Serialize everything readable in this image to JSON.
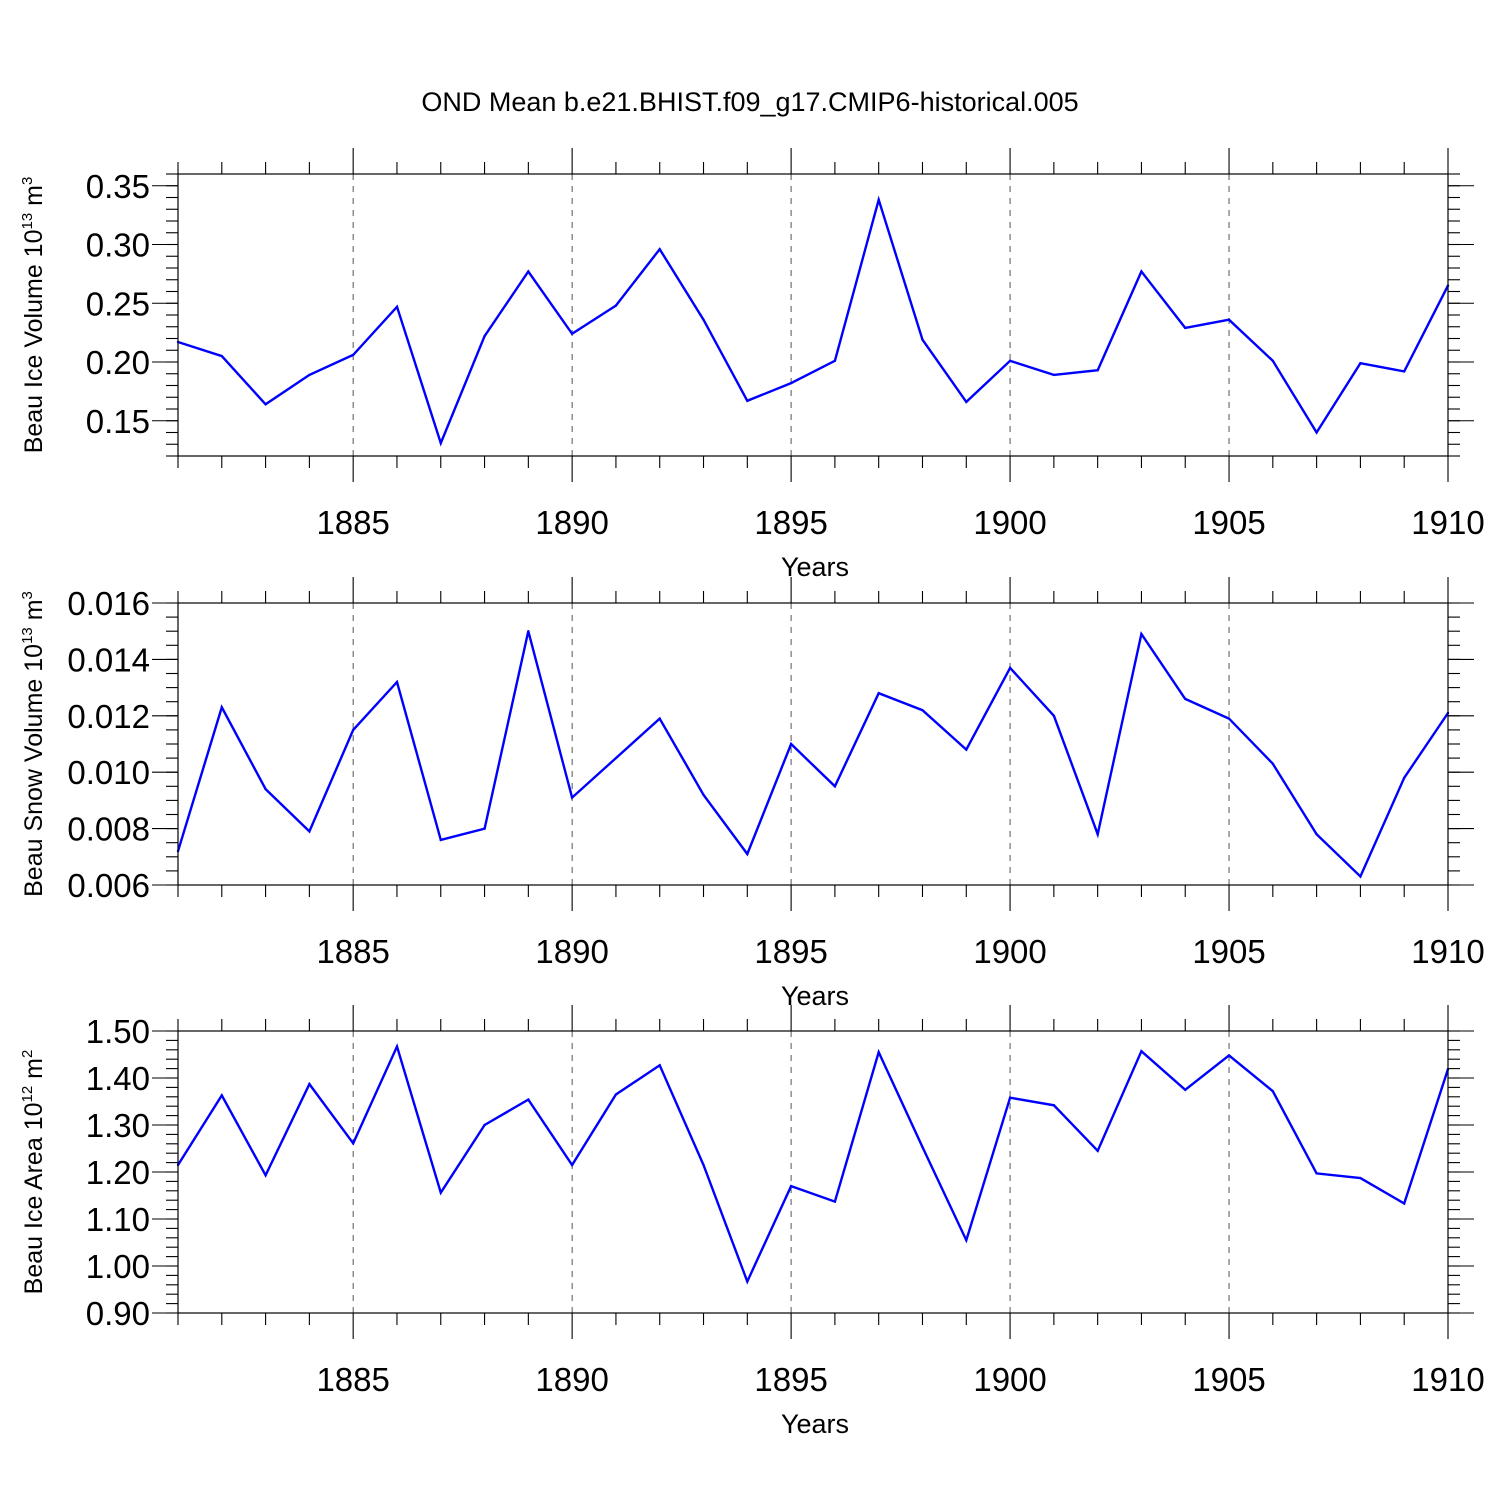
{
  "title": "OND Mean b.e21.BHIST.f09_g17.CMIP6-historical.005",
  "series_color": "#0000ff",
  "chart_data": [
    {
      "type": "line",
      "ylabel_main": "Beau Ice Volume 10",
      "ylabel_exp": "13",
      "ylabel_unit": " m",
      "ylabel_unit_exp": "3",
      "xlabel": "Years",
      "xlim": [
        1881,
        1910
      ],
      "ylim": [
        0.12,
        0.36
      ],
      "yticks": [
        0.15,
        0.2,
        0.25,
        0.3,
        0.35
      ],
      "ytick_labels": [
        "0.15",
        "0.20",
        "0.25",
        "0.30",
        "0.35"
      ],
      "yminor_step": 0.01,
      "xticks": [
        1885,
        1890,
        1895,
        1900,
        1905,
        1910
      ],
      "xtick_labels": [
        "1885",
        "1890",
        "1895",
        "1900",
        "1905",
        "1910"
      ],
      "x": [
        1881,
        1882,
        1883,
        1884,
        1885,
        1886,
        1887,
        1888,
        1889,
        1890,
        1891,
        1892,
        1893,
        1894,
        1895,
        1896,
        1897,
        1898,
        1899,
        1900,
        1901,
        1902,
        1903,
        1904,
        1905,
        1906,
        1907,
        1908,
        1909,
        1910
      ],
      "values": [
        0.217,
        0.205,
        0.164,
        0.189,
        0.206,
        0.247,
        0.131,
        0.222,
        0.277,
        0.224,
        0.248,
        0.296,
        0.236,
        0.167,
        0.182,
        0.201,
        0.338,
        0.219,
        0.166,
        0.201,
        0.189,
        0.193,
        0.277,
        0.229,
        0.236,
        0.201,
        0.14,
        0.199,
        0.192,
        0.265
      ]
    },
    {
      "type": "line",
      "ylabel_main": "Beau Snow Volume 10",
      "ylabel_exp": "13",
      "ylabel_unit": " m",
      "ylabel_unit_exp": "3",
      "xlabel": "Years",
      "xlim": [
        1881,
        1910
      ],
      "ylim": [
        0.006,
        0.016
      ],
      "yticks": [
        0.006,
        0.008,
        0.01,
        0.012,
        0.014,
        0.016
      ],
      "ytick_labels": [
        "0.006",
        "0.008",
        "0.010",
        "0.012",
        "0.014",
        "0.016"
      ],
      "yminor_step": 0.0005,
      "xticks": [
        1885,
        1890,
        1895,
        1900,
        1905,
        1910
      ],
      "xtick_labels": [
        "1885",
        "1890",
        "1895",
        "1900",
        "1905",
        "1910"
      ],
      "x": [
        1881,
        1882,
        1883,
        1884,
        1885,
        1886,
        1887,
        1888,
        1889,
        1890,
        1891,
        1892,
        1893,
        1894,
        1895,
        1896,
        1897,
        1898,
        1899,
        1900,
        1901,
        1902,
        1903,
        1904,
        1905,
        1906,
        1907,
        1908,
        1909,
        1910
      ],
      "values": [
        0.0072,
        0.0123,
        0.0094,
        0.0079,
        0.0115,
        0.0132,
        0.0076,
        0.008,
        0.015,
        0.0091,
        0.0105,
        0.0119,
        0.0092,
        0.0071,
        0.011,
        0.0095,
        0.0128,
        0.0122,
        0.0108,
        0.0137,
        0.012,
        0.0078,
        0.0149,
        0.0126,
        0.0119,
        0.0103,
        0.0078,
        0.0063,
        0.0098,
        0.0121
      ]
    },
    {
      "type": "line",
      "ylabel_main": "Beau Ice Area 10",
      "ylabel_exp": "12",
      "ylabel_unit": " m",
      "ylabel_unit_exp": "2",
      "xlabel": "Years",
      "xlim": [
        1881,
        1910
      ],
      "ylim": [
        0.9,
        1.5
      ],
      "yticks": [
        0.9,
        1.0,
        1.1,
        1.2,
        1.3,
        1.4,
        1.5
      ],
      "ytick_labels": [
        "0.90",
        "1.00",
        "1.10",
        "1.20",
        "1.30",
        "1.40",
        "1.50"
      ],
      "yminor_step": 0.02,
      "xticks": [
        1885,
        1890,
        1895,
        1900,
        1905,
        1910
      ],
      "xtick_labels": [
        "1885",
        "1890",
        "1895",
        "1900",
        "1905",
        "1910"
      ],
      "x": [
        1881,
        1882,
        1883,
        1884,
        1885,
        1886,
        1887,
        1888,
        1889,
        1890,
        1891,
        1892,
        1893,
        1894,
        1895,
        1896,
        1897,
        1898,
        1899,
        1900,
        1901,
        1902,
        1903,
        1904,
        1905,
        1906,
        1907,
        1908,
        1909,
        1910
      ],
      "values": [
        1.215,
        1.363,
        1.193,
        1.387,
        1.261,
        1.467,
        1.156,
        1.3,
        1.354,
        1.215,
        1.365,
        1.427,
        1.215,
        0.967,
        1.17,
        1.137,
        1.455,
        1.253,
        1.055,
        1.358,
        1.342,
        1.245,
        1.457,
        1.375,
        1.448,
        1.372,
        1.197,
        1.187,
        1.133,
        1.419
      ]
    }
  ]
}
